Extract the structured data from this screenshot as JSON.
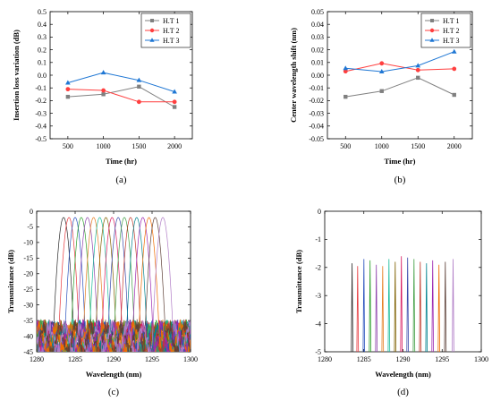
{
  "chart_data": [
    {
      "id": "a",
      "type": "line",
      "caption": "(a)",
      "xlabel": "Time (hr)",
      "ylabel": "Insertion loss variation (dB)",
      "x": [
        500,
        1000,
        1500,
        2000
      ],
      "xlim": [
        250,
        2250
      ],
      "ylim": [
        -0.5,
        0.5
      ],
      "xticks": [
        500,
        1000,
        1500,
        2000
      ],
      "yticks": [
        -0.5,
        -0.4,
        -0.3,
        -0.2,
        -0.1,
        0.0,
        0.1,
        0.2,
        0.3,
        0.4,
        0.5
      ],
      "ytick_labels": [
        "-0.5",
        "-0.4",
        "-0.3",
        "-0.2",
        "-0.1",
        "0.0",
        "0.1",
        "0.2",
        "0.3",
        "0.4",
        "0.5"
      ],
      "legend_position": "top-right",
      "series": [
        {
          "name": "H.T 1",
          "color": "#808080",
          "marker": "square",
          "values": [
            -0.17,
            -0.15,
            -0.09,
            -0.25
          ]
        },
        {
          "name": "H.T 2",
          "color": "#ff3f3f",
          "marker": "circle",
          "values": [
            -0.11,
            -0.12,
            -0.21,
            -0.21
          ]
        },
        {
          "name": "H.T 3",
          "color": "#1f77d4",
          "marker": "triangle",
          "values": [
            -0.06,
            0.02,
            -0.04,
            -0.13
          ]
        }
      ]
    },
    {
      "id": "b",
      "type": "line",
      "caption": "(b)",
      "xlabel": "Time (hr)",
      "ylabel": "Center wavelength shift (nm)",
      "x": [
        500,
        1000,
        1500,
        2000
      ],
      "xlim": [
        250,
        2250
      ],
      "ylim": [
        -0.05,
        0.05
      ],
      "xticks": [
        500,
        1000,
        1500,
        2000
      ],
      "yticks": [
        -0.05,
        -0.04,
        -0.03,
        -0.02,
        -0.01,
        0.0,
        0.01,
        0.02,
        0.03,
        0.04,
        0.05
      ],
      "ytick_labels": [
        "-0.05",
        "-0.04",
        "-0.03",
        "-0.02",
        "-0.01",
        "0.00",
        "0.01",
        "0.02",
        "0.03",
        "0.04",
        "0.05"
      ],
      "legend_position": "top-right",
      "series": [
        {
          "name": "H.T 1",
          "color": "#808080",
          "marker": "square",
          "values": [
            -0.017,
            -0.0125,
            -0.002,
            -0.0155
          ]
        },
        {
          "name": "H.T 2",
          "color": "#ff3f3f",
          "marker": "circle",
          "values": [
            0.003,
            0.0093,
            0.004,
            0.005
          ]
        },
        {
          "name": "H.T 3",
          "color": "#1f77d4",
          "marker": "triangle",
          "values": [
            0.0055,
            0.0028,
            0.0075,
            0.0185
          ]
        }
      ]
    },
    {
      "id": "c",
      "type": "line",
      "caption": "(c)",
      "xlabel": "Wavelength (nm)",
      "ylabel": "Transmittance (dB)",
      "xlim": [
        1280,
        1300
      ],
      "ylim": [
        -45,
        0
      ],
      "xticks": [
        1280,
        1285,
        1290,
        1295,
        1300
      ],
      "yticks": [
        -45,
        -40,
        -35,
        -30,
        -25,
        -20,
        -15,
        -10,
        -5,
        0
      ],
      "ytick_labels": [
        "-45",
        "-40",
        "-35",
        "-30",
        "-25",
        "-20",
        "-15",
        "-10",
        "-5",
        "0"
      ],
      "channel_centers_nm": [
        1283.5,
        1284.2,
        1285.0,
        1285.8,
        1286.6,
        1287.4,
        1288.2,
        1289.0,
        1289.8,
        1290.6,
        1291.4,
        1292.2,
        1293.0,
        1293.8,
        1294.6,
        1295.4,
        1296.4
      ],
      "peak_db": [
        -2.0,
        -2.0,
        -2.0,
        -2.0,
        -2.0,
        -2.0,
        -2.0,
        -2.0,
        -2.0,
        -2.0,
        -2.0,
        -2.0,
        -2.0,
        -2.0,
        -2.0,
        -2.0,
        -2.0
      ],
      "channel_colors": [
        "#2b2b2b",
        "#e8383d",
        "#2a52be",
        "#2ca02c",
        "#8e44ad",
        "#e67e22",
        "#1abc9c",
        "#7f6000",
        "#d81b60",
        "#3949ab",
        "#43a047",
        "#c0392b",
        "#00838f",
        "#9c27b0",
        "#ef6c00",
        "#5d4037",
        "#b07cc6"
      ]
    },
    {
      "id": "d",
      "type": "bar",
      "caption": "(d)",
      "xlabel": "Wavelength (nm)",
      "ylabel": "Transmittance (dB)",
      "xlim": [
        1280,
        1300
      ],
      "ylim": [
        -5,
        0
      ],
      "xticks": [
        1280,
        1285,
        1290,
        1295,
        1300
      ],
      "yticks": [
        -5,
        -4,
        -3,
        -2,
        -1,
        0
      ],
      "ytick_labels": [
        "-5",
        "-4",
        "-3",
        "-2",
        "-1",
        "0"
      ],
      "channel_centers_nm": [
        1283.5,
        1284.2,
        1285.0,
        1285.8,
        1286.6,
        1287.4,
        1288.2,
        1289.0,
        1289.8,
        1290.6,
        1291.4,
        1292.2,
        1293.0,
        1293.8,
        1294.6,
        1295.4,
        1296.4
      ],
      "peak_db": [
        -1.85,
        -1.95,
        -1.7,
        -1.75,
        -1.9,
        -1.95,
        -1.7,
        -1.8,
        -1.6,
        -1.65,
        -1.7,
        -1.8,
        -1.85,
        -1.75,
        -1.9,
        -1.8,
        -1.7
      ],
      "channel_colors": [
        "#2b2b2b",
        "#e8383d",
        "#2a52be",
        "#2ca02c",
        "#8e44ad",
        "#e67e22",
        "#1abc9c",
        "#7f6000",
        "#d81b60",
        "#3949ab",
        "#43a047",
        "#c0392b",
        "#00838f",
        "#9c27b0",
        "#ef6c00",
        "#5d4037",
        "#b07cc6"
      ]
    }
  ]
}
